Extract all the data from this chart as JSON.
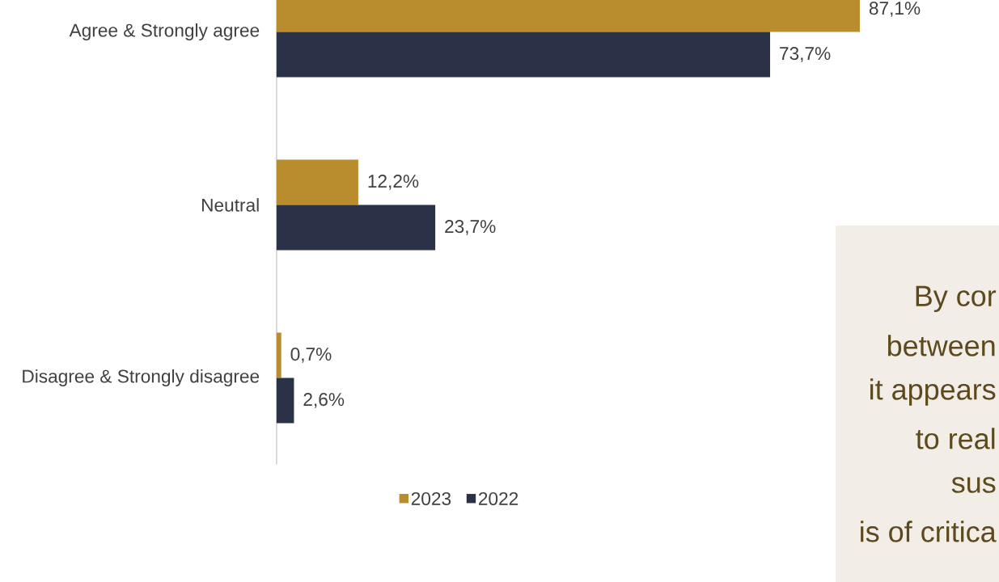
{
  "chart_data": {
    "type": "bar",
    "orientation": "horizontal",
    "categories": [
      "Agree & Strongly agree",
      "Neutral",
      "Disagree & Strongly disagree"
    ],
    "series": [
      {
        "name": "2023",
        "color": "#b98c2e",
        "values": [
          87.1,
          12.2,
          0.7
        ],
        "value_labels": [
          "87,1%",
          "12,2%",
          "0,7%"
        ]
      },
      {
        "name": "2022",
        "color": "#2b3247",
        "values": [
          73.7,
          23.7,
          2.6
        ],
        "value_labels": [
          "73,7%",
          "23,7%",
          "2,6%"
        ]
      }
    ],
    "legend": "bottom",
    "annotations": [
      "By cor",
      "between",
      "it appears",
      "to real",
      "sus",
      "is of critica"
    ]
  }
}
